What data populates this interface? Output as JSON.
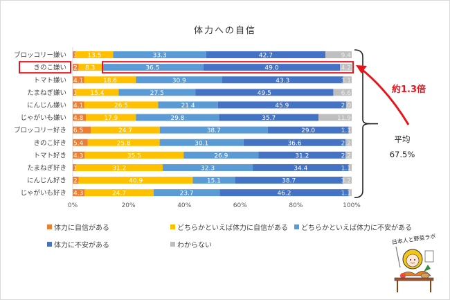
{
  "chart_data": {
    "type": "bar",
    "orientation": "horizontal",
    "stacked": "percent",
    "title": "体力への自信",
    "categories": [
      "ブロッコリー嫌い",
      "きのこ嫌い",
      "トマト嫌い",
      "たまねぎ嫌い",
      "にんじん嫌い",
      "じゃがいも嫌い",
      "ブロッコリー好き",
      "きのこ好き",
      "トマト好き",
      "たまねぎ好き",
      "にんじん好き",
      "じゃがいも好き"
    ],
    "series": [
      {
        "name": "体力に自信がある",
        "color": "#ed7d31",
        "values": [
          1.0,
          2.1,
          4.1,
          1.1,
          4.1,
          4.8,
          6.5,
          5.4,
          4.3,
          1.1,
          2.2,
          4.3
        ],
        "labels": [
          "1.0",
          "2.1",
          "4.1",
          "1.1",
          "4.1",
          "4.8",
          "6.5",
          "5.4",
          "4.3",
          "1.1",
          "2.2",
          "4.3"
        ]
      },
      {
        "name": "どちらかといえば体力に自信がある",
        "color": "#ffc000",
        "values": [
          13.5,
          8.3,
          18.6,
          15.4,
          26.5,
          17.9,
          24.7,
          25.8,
          35.5,
          31.2,
          40.9,
          24.7
        ],
        "labels": [
          "13.5",
          "8.3",
          "18.6",
          "15.4",
          "26.5",
          "17.9",
          "24.7",
          "25.8",
          "35.5",
          "31.2",
          "40.9",
          "24.7"
        ]
      },
      {
        "name": "どちらかといえば体力に不安がある",
        "color": "#5b9bd5",
        "values": [
          33.3,
          36.5,
          30.9,
          27.5,
          21.4,
          29.8,
          38.7,
          30.1,
          26.9,
          32.3,
          15.1,
          23.7
        ],
        "labels": [
          "33.3",
          "36.5",
          "30.9",
          "27.5",
          "21.4",
          "29.8",
          "38.7",
          "30.1",
          "26.9",
          "32.3",
          "15.1",
          "23.7"
        ]
      },
      {
        "name": "体力に不安がある",
        "color": "#4472c4",
        "values": [
          42.7,
          49.0,
          43.3,
          49.5,
          45.9,
          35.7,
          29.0,
          36.6,
          31.2,
          34.4,
          38.7,
          46.2
        ],
        "labels": [
          "42.7",
          "49.0",
          "43.3",
          "49.5",
          "45.9",
          "35.7",
          "29.0",
          "36.6",
          "31.2",
          "34.4",
          "38.7",
          "46.2"
        ]
      },
      {
        "name": "わからない",
        "color": "#bfbfbf",
        "values": [
          9.4,
          4.2,
          3.1,
          6.6,
          2.0,
          11.9,
          1.1,
          2.2,
          2.2,
          1.1,
          3.2,
          1.1
        ],
        "labels": [
          "9.4",
          "4.2",
          "3.1",
          "6.6",
          "2.0",
          "11.9",
          "1.1",
          "2.2",
          "2.2",
          "1.1",
          "3.2",
          "1.1"
        ]
      }
    ],
    "xlim": [
      0,
      100
    ],
    "xticks": [
      "0%",
      "20%",
      "40%",
      "60%",
      "80%",
      "100%"
    ],
    "legend_position": "bottom",
    "highlight_category": "きのこ嫌い",
    "annotations": {
      "ratio": "約1.3倍",
      "average_label": "平均",
      "average_value": "67.5%"
    }
  },
  "colors": {
    "highlight": "#e8141c",
    "text": "#444444"
  },
  "logo": {
    "text": "日本人と野菜ラボ"
  }
}
